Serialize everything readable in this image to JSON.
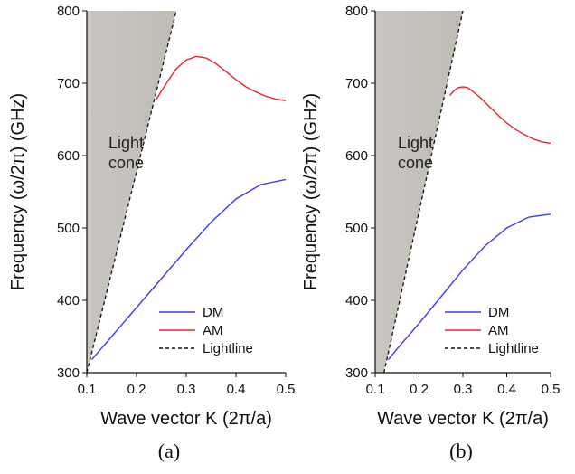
{
  "chart_data": [
    {
      "panel_label": "(a)",
      "type": "line",
      "xlabel": "Wave vector K (2π/a)",
      "ylabel": "Frequency (ω/2π) (GHz)",
      "xlim": [
        0.1,
        0.5
      ],
      "ylim": [
        300,
        800
      ],
      "xticks": [
        0.1,
        0.2,
        0.3,
        0.4,
        0.5
      ],
      "yticks": [
        300,
        400,
        500,
        600,
        700,
        800
      ],
      "cone_label_lines": [
        "Light",
        "cone"
      ],
      "legend_position": "bottom-right",
      "series": [
        {
          "name": "DM",
          "color": "#3a3aff",
          "style": "solid",
          "x": [
            0.11,
            0.15,
            0.2,
            0.25,
            0.3,
            0.35,
            0.4,
            0.45,
            0.5
          ],
          "y": [
            318,
            350,
            390,
            430,
            470,
            508,
            540,
            560,
            567
          ]
        },
        {
          "name": "AM",
          "color": "#e8242a",
          "style": "solid",
          "x": [
            0.24,
            0.26,
            0.28,
            0.3,
            0.32,
            0.34,
            0.36,
            0.38,
            0.4,
            0.42,
            0.44,
            0.46,
            0.48,
            0.5
          ],
          "y": [
            678,
            700,
            720,
            732,
            737,
            735,
            727,
            716,
            705,
            695,
            688,
            682,
            678,
            676
          ]
        },
        {
          "name": "Lightline",
          "color": "#111111",
          "style": "dashed",
          "x": [
            0.1,
            0.28
          ],
          "y": [
            300,
            800
          ]
        }
      ]
    },
    {
      "panel_label": "(b)",
      "type": "line",
      "xlabel": "Wave vector K (2π/a)",
      "ylabel": "Frequency (ω/2π) (GHz)",
      "xlim": [
        0.1,
        0.5
      ],
      "ylim": [
        300,
        800
      ],
      "xticks": [
        0.1,
        0.2,
        0.3,
        0.4,
        0.5
      ],
      "yticks": [
        300,
        400,
        500,
        600,
        700,
        800
      ],
      "cone_label_lines": [
        "Light",
        "cone"
      ],
      "legend_position": "bottom-right",
      "series": [
        {
          "name": "DM",
          "color": "#3a3aff",
          "style": "solid",
          "x": [
            0.13,
            0.15,
            0.2,
            0.25,
            0.3,
            0.35,
            0.4,
            0.45,
            0.5
          ],
          "y": [
            318,
            333,
            368,
            405,
            442,
            475,
            500,
            515,
            519
          ]
        },
        {
          "name": "AM",
          "color": "#e8242a",
          "style": "solid",
          "x": [
            0.27,
            0.28,
            0.29,
            0.3,
            0.31,
            0.32,
            0.34,
            0.36,
            0.38,
            0.4,
            0.42,
            0.44,
            0.46,
            0.48,
            0.5
          ],
          "y": [
            683,
            690,
            694,
            695,
            694,
            690,
            680,
            668,
            656,
            645,
            636,
            629,
            623,
            619,
            617
          ]
        },
        {
          "name": "Lightline",
          "color": "#111111",
          "style": "dashed",
          "x": [
            0.12,
            0.3
          ],
          "y": [
            300,
            800
          ]
        }
      ]
    }
  ]
}
